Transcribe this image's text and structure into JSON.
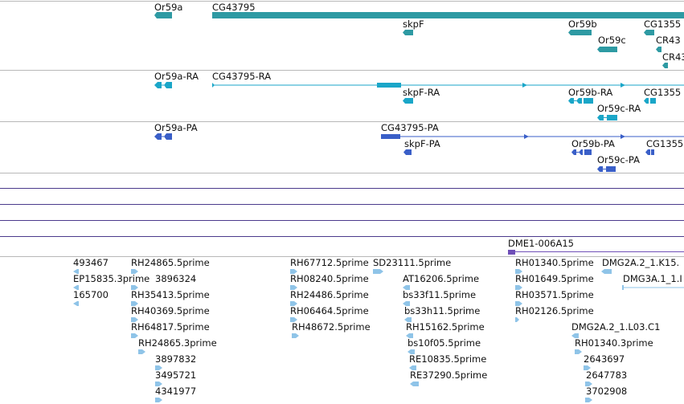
{
  "colors": {
    "gene": "#2e9aa3",
    "transcript": "#1aa6c8",
    "protein": "#3a5fc8",
    "est": "#8fc4e8",
    "misc": "#6f4fb8",
    "separator": "#b8b8b8"
  },
  "tracks": {
    "genes": {
      "labels": [
        "Or59a",
        "CG43795",
        "skpF",
        "Or59b",
        "Or59c",
        "CG1355",
        "CR43",
        "CR43"
      ]
    },
    "transcripts": {
      "labels": [
        "Or59a-RA",
        "CG43795-RA",
        "skpF-RA",
        "Or59b-RA",
        "Or59c-RA",
        "CG1355"
      ]
    },
    "proteins": {
      "labels": [
        "Or59a-PA",
        "CG43795-PA",
        "skpF-PA",
        "Or59b-PA",
        "Or59c-PA",
        "CG1355"
      ]
    },
    "misc": {
      "labels": [
        "DME1-006A15"
      ]
    },
    "ests": {
      "labels": [
        "493467",
        "EP15835.3prime",
        "165700",
        "RH24865.5prime",
        "3896324",
        "RH35413.5prime",
        "RH40369.5prime",
        "RH64817.5prime",
        "RH24865.3prime",
        "3897832",
        "3495721",
        "4341977",
        "RH67712.5prime",
        "SD23111.5prime",
        "RH08240.5prime",
        "RH24486.5prime",
        "RH06464.5prime",
        "RH48672.5prime",
        "AT16206.5prime",
        "bs33f11.5prime",
        "bs33h11.5prime",
        "RH15162.5prime",
        "bs10f05.5prime",
        "RE10835.5prime",
        "RE37290.5prime",
        "RH01340.5prime",
        "DMG2A.2_1.K15.",
        "RH01649.5prime",
        "DMG3A.1_1.I",
        "RH03571.5prime",
        "RH02126.5prime",
        "DMG2A.2_1.L03.C1",
        "RH01340.3prime",
        "2643697",
        "2647783",
        "3702908"
      ]
    }
  }
}
